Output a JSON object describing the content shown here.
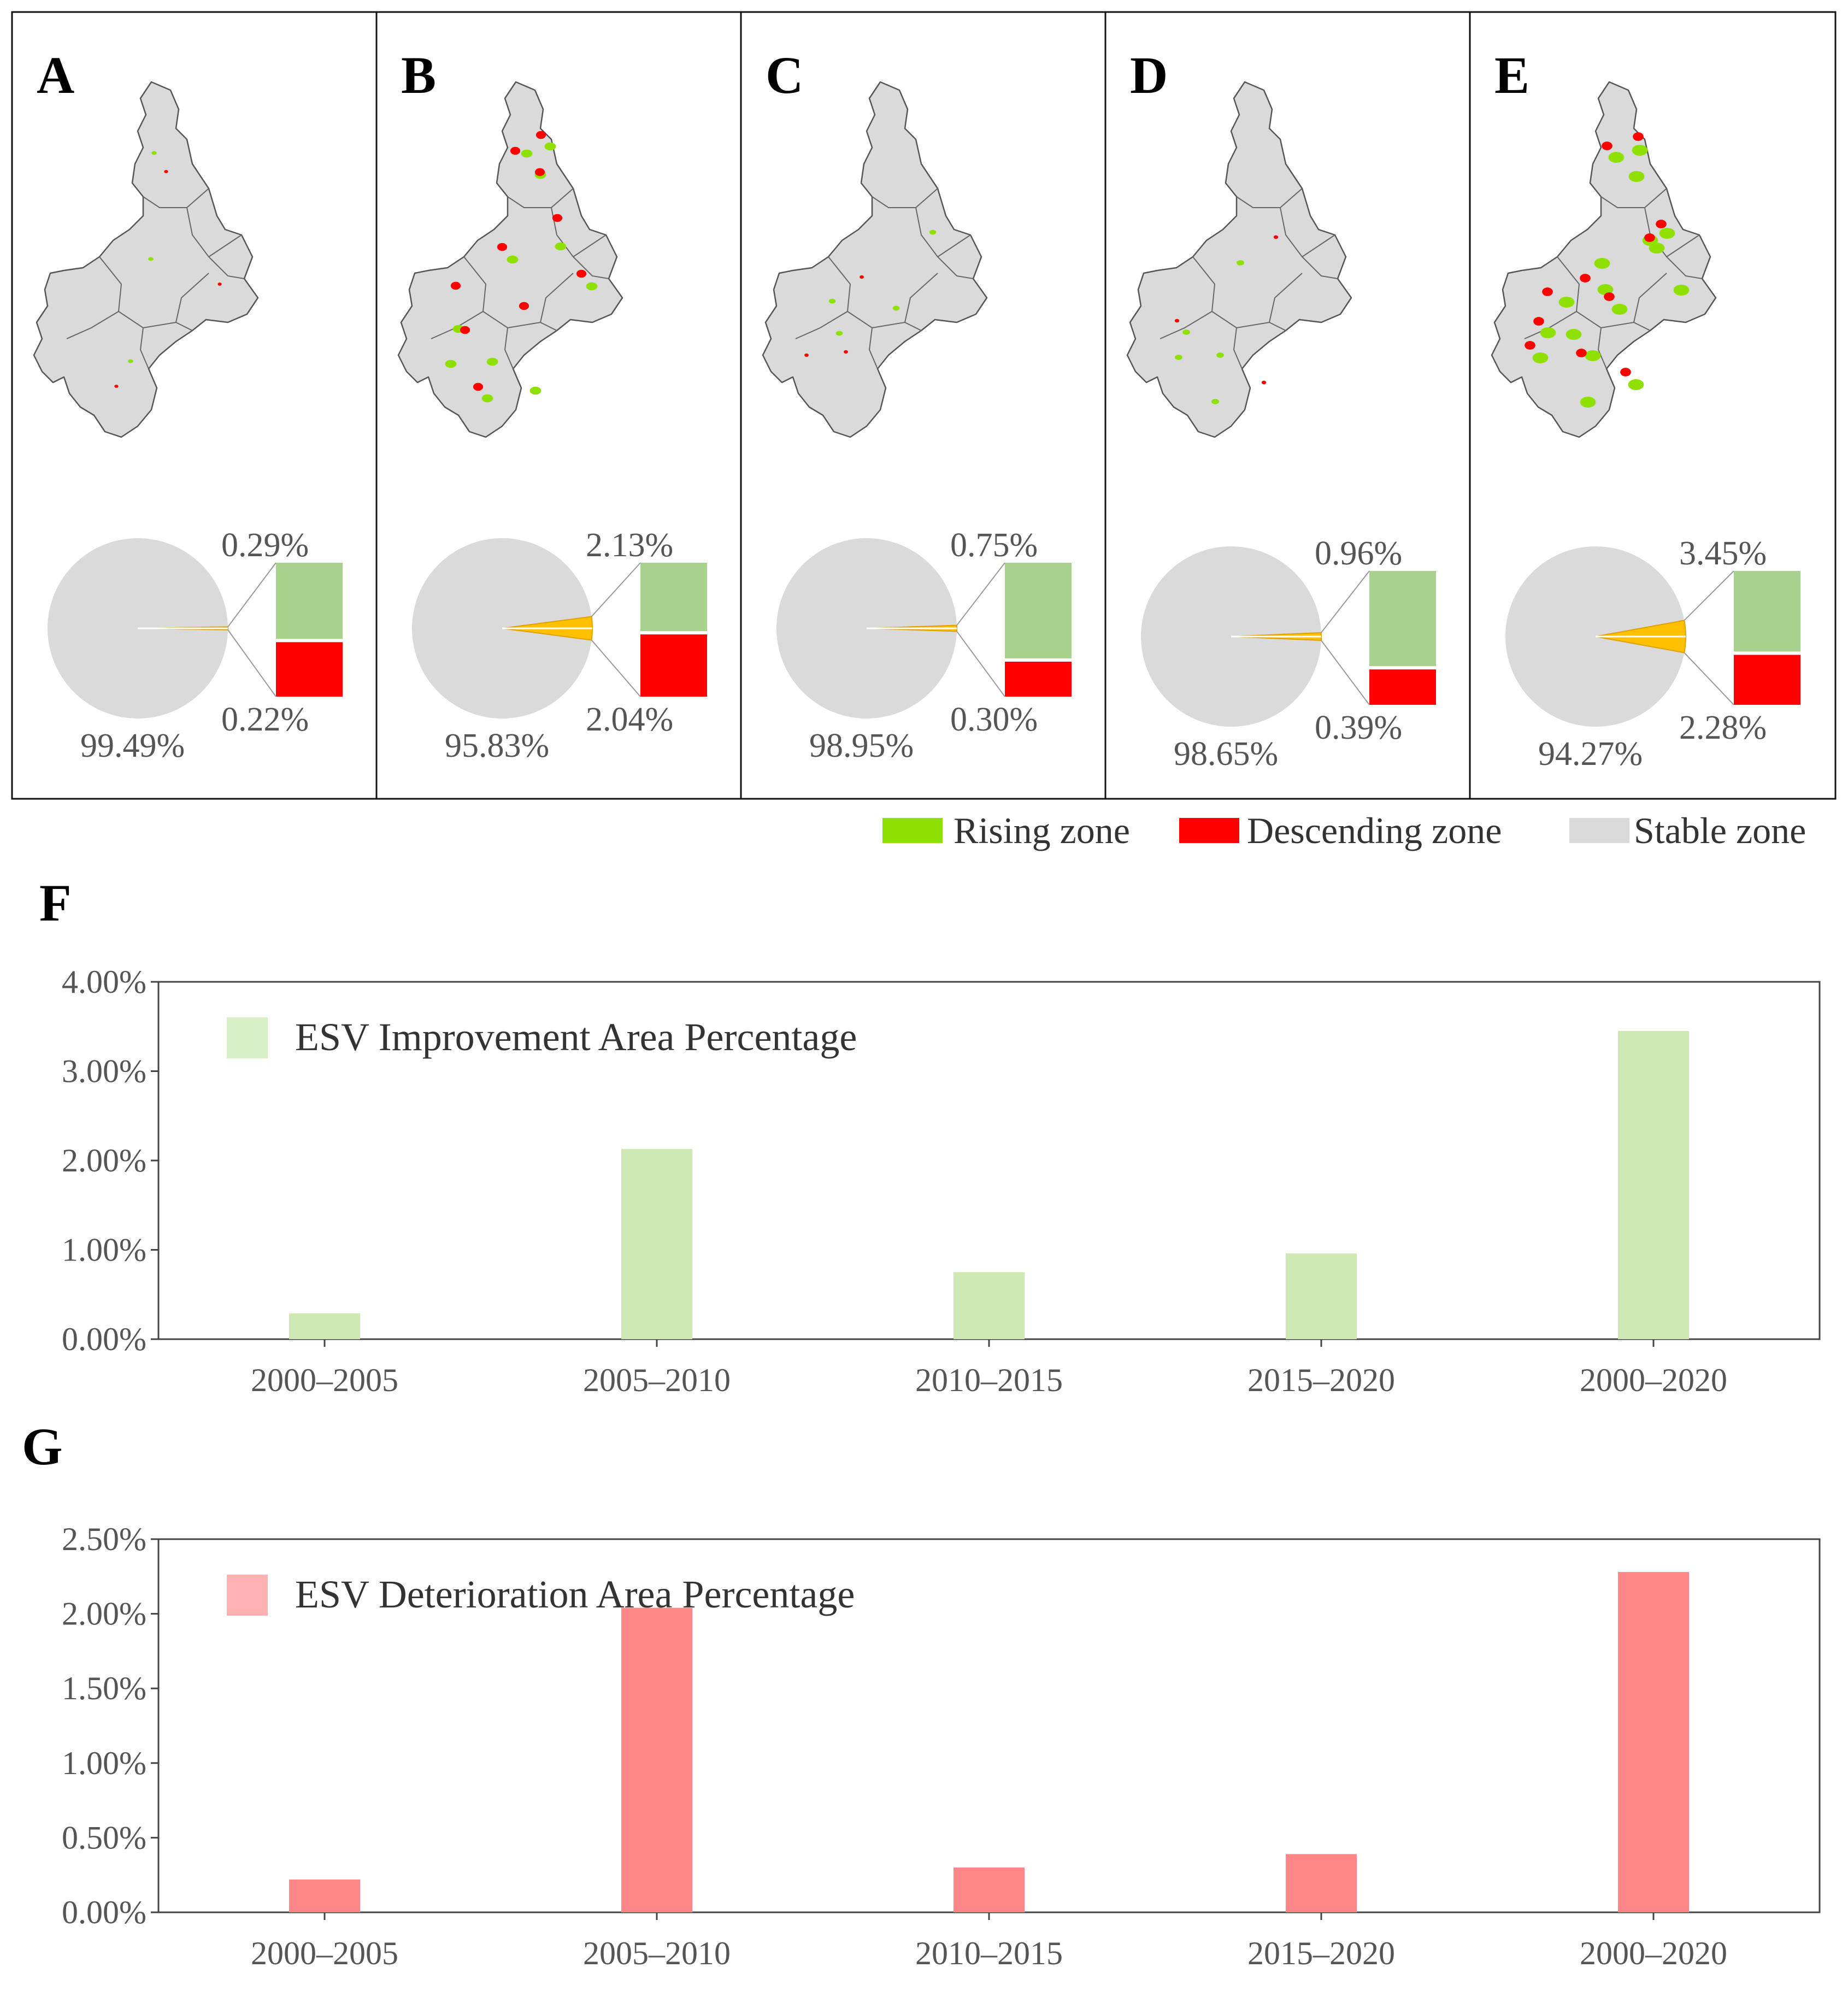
{
  "colors": {
    "rising": "#8ee000",
    "descending": "#ff0000",
    "stable": "#dadada",
    "pie_change": "#ffc000",
    "bar_rising": "#a9d18e",
    "bar_descending": "#ff0000",
    "improve_bar": "#cfe9b4",
    "deter_bar": "#ff8686",
    "improve_legend": "#d7efc4",
    "deter_legend": "#ffb0b0"
  },
  "legend": {
    "rising": "Rising zone",
    "descending": "Descending zone",
    "stable": "Stable zone"
  },
  "panels": [
    {
      "label": "A",
      "rising_pct": "0.29%",
      "descending_pct": "0.22%",
      "stable_pct": "99.49%",
      "rising": 0.29,
      "descending": 0.22,
      "stable": 99.49
    },
    {
      "label": "B",
      "rising_pct": "2.13%",
      "descending_pct": "2.04%",
      "stable_pct": "95.83%",
      "rising": 2.13,
      "descending": 2.04,
      "stable": 95.83
    },
    {
      "label": "C",
      "rising_pct": "0.75%",
      "descending_pct": "0.30%",
      "stable_pct": "98.95%",
      "rising": 0.75,
      "descending": 0.3,
      "stable": 98.95
    },
    {
      "label": "D",
      "rising_pct": "0.96%",
      "descending_pct": "0.39%",
      "stable_pct": "98.65%",
      "rising": 0.96,
      "descending": 0.39,
      "stable": 98.65
    },
    {
      "label": "E",
      "rising_pct": "3.45%",
      "descending_pct": "2.28%",
      "stable_pct": "94.27%",
      "rising": 3.45,
      "descending": 2.28,
      "stable": 94.27
    }
  ],
  "chart_data": [
    {
      "type": "bar",
      "panel_label": "F",
      "categories": [
        "2000–2005",
        "2005–2010",
        "2010–2015",
        "2015–2020",
        "2000–2020"
      ],
      "series": [
        {
          "name": "ESV Improvement Area Percentage",
          "values": [
            0.29,
            2.13,
            0.75,
            0.96,
            3.45
          ]
        }
      ],
      "yticks": [
        "0.00%",
        "1.00%",
        "2.00%",
        "3.00%",
        "4.00%"
      ],
      "ylim": [
        0,
        4
      ],
      "legend_position": "top-left",
      "grid": false
    },
    {
      "type": "bar",
      "panel_label": "G",
      "categories": [
        "2000–2005",
        "2005–2010",
        "2010–2015",
        "2015–2020",
        "2000–2020"
      ],
      "series": [
        {
          "name": "ESV Deterioration Area Percentage",
          "values": [
            0.22,
            2.04,
            0.3,
            0.39,
            2.28
          ]
        }
      ],
      "yticks": [
        "0.00%",
        "0.50%",
        "1.00%",
        "1.50%",
        "2.00%",
        "2.50%"
      ],
      "ylim": [
        0,
        2.5
      ],
      "legend_position": "top-left",
      "grid": false
    }
  ]
}
